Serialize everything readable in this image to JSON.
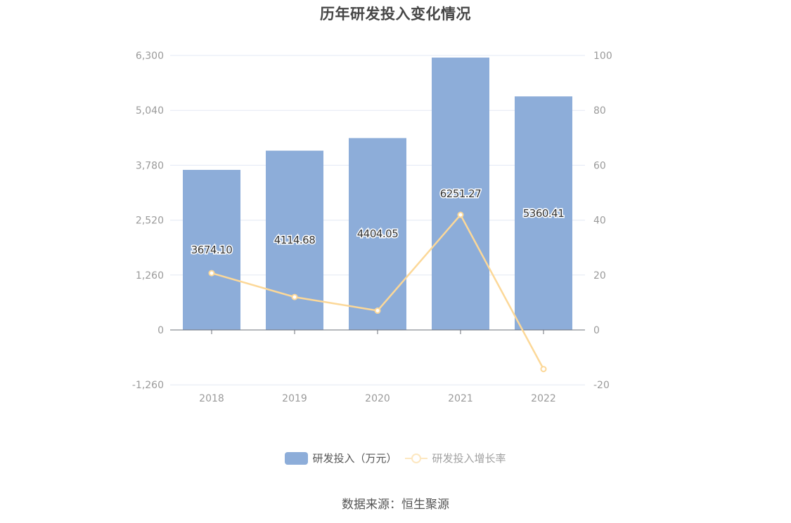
{
  "title": "历年研发投入变化情况",
  "source": "数据来源：恒生聚源",
  "legend": {
    "bar_label": "研发投入（万元）",
    "line_label": "研发投入增长率"
  },
  "colors": {
    "bar": "#8dadd9",
    "line": "#fcd898",
    "grid": "#e3e8f4",
    "axis": "#6e7079",
    "tick_label": "#9a9a9a",
    "data_label": "#333333"
  },
  "axes": {
    "left_ticks": [
      "6,300",
      "5,040",
      "3,780",
      "2,520",
      "1,260",
      "0",
      "-1,260"
    ],
    "right_ticks": [
      "100",
      "80",
      "60",
      "40",
      "20",
      "0",
      "-20"
    ]
  },
  "chart_data": {
    "type": "bar",
    "title": "历年研发投入变化情况",
    "xlabel": "",
    "ylabel": "",
    "categories": [
      "2018",
      "2019",
      "2020",
      "2021",
      "2022"
    ],
    "series": [
      {
        "name": "研发投入（万元）",
        "type": "bar",
        "axis": "left",
        "values": [
          3674.1,
          4114.68,
          4404.05,
          6251.27,
          5360.41
        ],
        "labels": [
          "3674.10",
          "4114.68",
          "4404.05",
          "6251.27",
          "5360.41"
        ]
      },
      {
        "name": "研发投入增长率",
        "type": "line",
        "axis": "right",
        "values": [
          20.69,
          11.99,
          7.03,
          41.94,
          -14.25
        ]
      }
    ],
    "ylim": [
      -1260,
      6300
    ],
    "ylim_right": [
      -20,
      100
    ],
    "left_ticks": [
      -1260,
      0,
      1260,
      2520,
      3780,
      5040,
      6300
    ],
    "right_ticks": [
      -20,
      0,
      20,
      40,
      60,
      80,
      100
    ],
    "grid": true,
    "legend_position": "bottom"
  }
}
